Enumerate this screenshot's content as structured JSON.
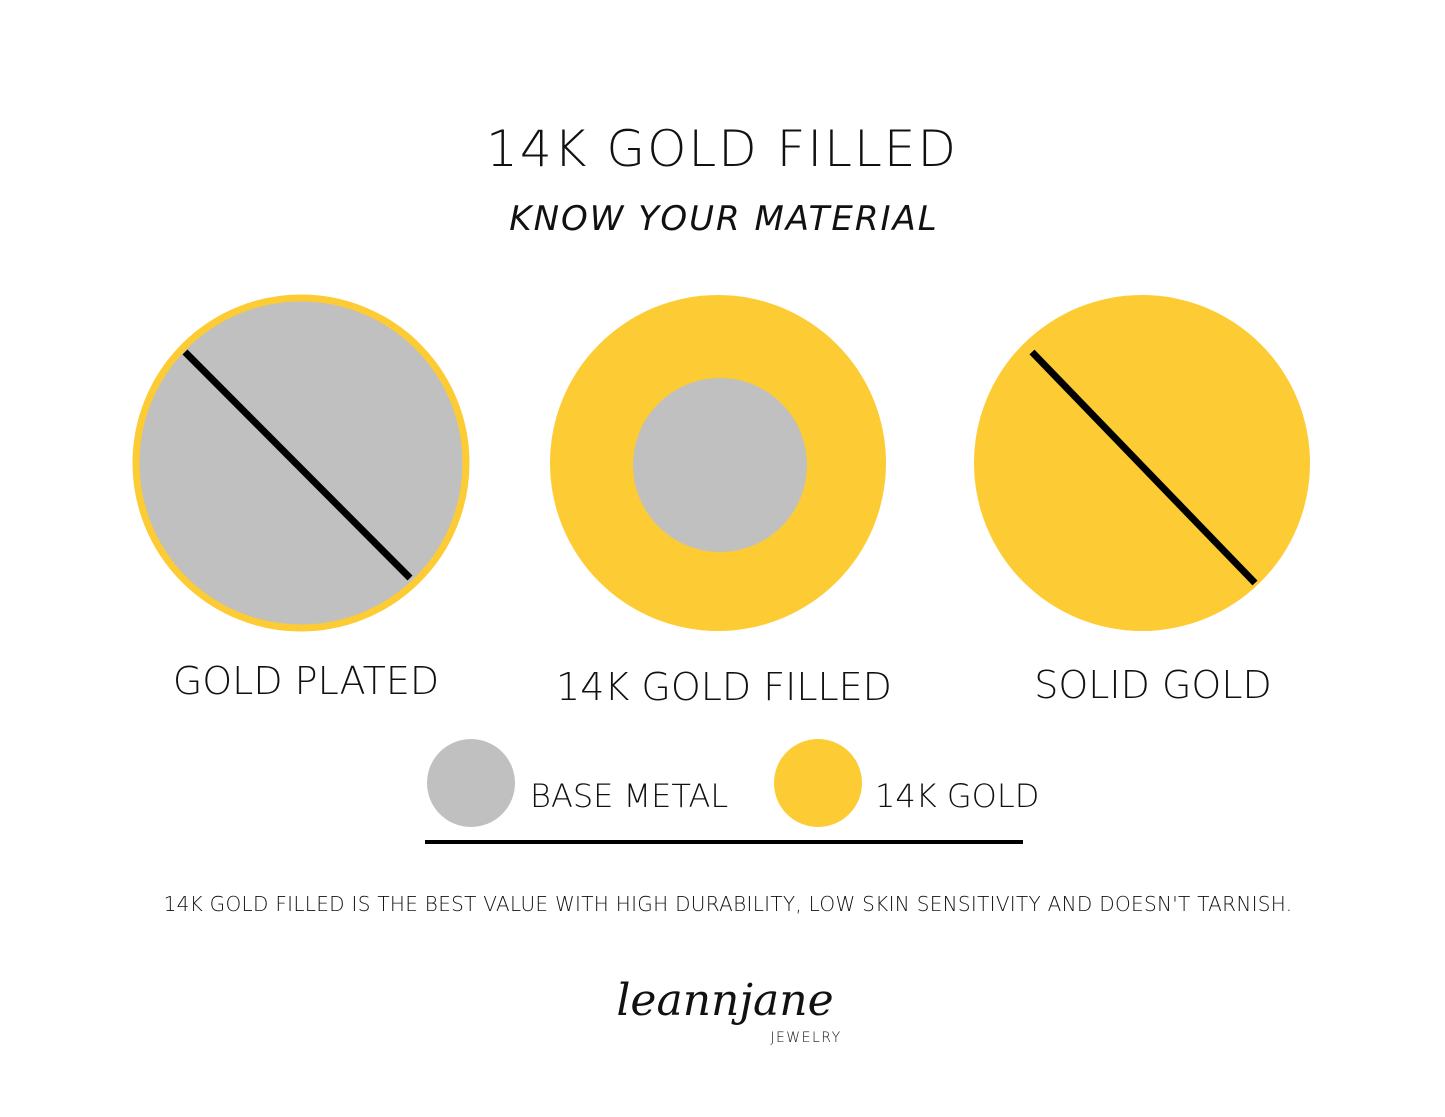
{
  "header": {
    "title": "14K GOLD FILLED",
    "subtitle": "KNOW YOUR MATERIAL"
  },
  "items": [
    {
      "label": "GOLD PLATED"
    },
    {
      "label": "14K GOLD FILLED"
    },
    {
      "label": "SOLID GOLD"
    }
  ],
  "legend": [
    {
      "label": "BASE METAL"
    },
    {
      "label": "14K GOLD"
    }
  ],
  "note": "14K GOLD FILLED IS THE BEST VALUE WITH HIGH DURABILITY, LOW SKIN SENSITIVITY AND DOESN'T TARNISH.",
  "logo": {
    "name": "leannjane",
    "sub": "JEWELRY"
  }
}
